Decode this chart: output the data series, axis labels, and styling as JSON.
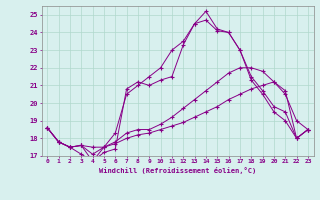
{
  "background_color": "#d8f0ee",
  "grid_color": "#b0d8cc",
  "line_color": "#880088",
  "xlim": [
    -0.5,
    23.5
  ],
  "ylim": [
    17,
    25.5
  ],
  "xticks": [
    0,
    1,
    2,
    3,
    4,
    5,
    6,
    7,
    8,
    9,
    10,
    11,
    12,
    13,
    14,
    15,
    16,
    17,
    18,
    19,
    20,
    21,
    22,
    23
  ],
  "yticks": [
    17,
    18,
    19,
    20,
    21,
    22,
    23,
    24,
    25
  ],
  "xlabel": "Windchill (Refroidissement éolien,°C)",
  "series": [
    [
      18.6,
      17.8,
      17.5,
      17.6,
      16.7,
      17.5,
      18.3,
      20.5,
      21.0,
      21.5,
      22.0,
      23.0,
      23.5,
      24.5,
      24.7,
      24.1,
      24.0,
      23.0,
      21.5,
      20.7,
      19.8,
      19.5,
      18.0,
      18.5
    ],
    [
      18.6,
      17.8,
      17.5,
      17.1,
      16.7,
      17.2,
      17.4,
      20.8,
      21.2,
      21.0,
      21.3,
      21.5,
      23.3,
      24.5,
      25.2,
      24.2,
      24.0,
      23.0,
      21.3,
      20.5,
      19.5,
      19.0,
      18.0,
      18.5
    ],
    [
      18.6,
      17.8,
      17.5,
      17.6,
      17.1,
      17.5,
      17.8,
      18.3,
      18.5,
      18.5,
      18.8,
      19.2,
      19.7,
      20.2,
      20.7,
      21.2,
      21.7,
      22.0,
      22.0,
      21.8,
      21.2,
      20.5,
      19.0,
      18.5
    ],
    [
      18.6,
      17.8,
      17.5,
      17.6,
      17.5,
      17.5,
      17.7,
      18.0,
      18.2,
      18.3,
      18.5,
      18.7,
      18.9,
      19.2,
      19.5,
      19.8,
      20.2,
      20.5,
      20.8,
      21.0,
      21.2,
      20.7,
      18.0,
      18.5
    ]
  ]
}
